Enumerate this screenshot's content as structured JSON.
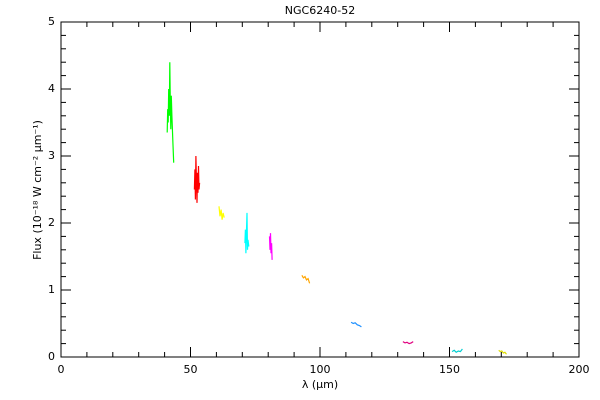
{
  "chart_data": {
    "type": "line",
    "title": "NGC6240-52",
    "x_label": "λ (μm)",
    "y_label": "Flux (10⁻¹⁸ W cm⁻² μm⁻¹)",
    "xlim": [
      0,
      200
    ],
    "ylim": [
      0,
      5
    ],
    "xticks": [
      0,
      50,
      100,
      150,
      200
    ],
    "yticks": [
      0,
      1,
      2,
      3,
      4,
      5
    ],
    "xminorticks": [
      10,
      20,
      30,
      40,
      60,
      70,
      80,
      90,
      110,
      120,
      130,
      140,
      160,
      170,
      180,
      190
    ],
    "yminorticks": [
      0.2,
      0.4,
      0.6,
      0.8,
      1.2,
      1.4,
      1.6,
      1.8,
      2.2,
      2.4,
      2.6,
      2.8,
      3.2,
      3.4,
      3.6,
      3.8,
      4.2,
      4.4,
      4.6,
      4.8
    ],
    "series": [
      {
        "color": "#00ff00",
        "x": [
          41,
          41.2,
          41.4,
          41.6,
          41.8,
          42,
          42.2,
          42.4,
          42.6,
          42.8,
          43,
          43.2,
          43.5
        ],
        "values": [
          3.35,
          3.7,
          3.5,
          4.0,
          3.6,
          4.4,
          3.8,
          3.4,
          3.9,
          3.6,
          3.4,
          3.2,
          2.9
        ]
      },
      {
        "color": "#ff0000",
        "x": [
          51.5,
          51.7,
          51.9,
          52.1,
          52.3,
          52.5,
          52.7,
          52.9,
          53.1,
          53.3,
          53.5
        ],
        "values": [
          2.5,
          2.8,
          2.35,
          3.0,
          2.6,
          2.3,
          2.75,
          2.45,
          2.85,
          2.5,
          2.6
        ]
      },
      {
        "color": "#ffff00",
        "x": [
          61,
          61.4,
          61.8,
          62.2,
          62.6,
          63
        ],
        "values": [
          2.25,
          2.1,
          2.2,
          2.05,
          2.15,
          2.08
        ]
      },
      {
        "color": "#00ffff",
        "x": [
          71,
          71.2,
          71.4,
          71.6,
          71.8,
          72,
          72.2,
          72.5
        ],
        "values": [
          1.7,
          1.9,
          1.55,
          1.85,
          2.15,
          1.6,
          1.75,
          1.65
        ]
      },
      {
        "color": "#ff00ff",
        "x": [
          80.5,
          80.7,
          80.9,
          81.1,
          81.3,
          81.5
        ],
        "values": [
          1.8,
          1.6,
          1.85,
          1.55,
          1.7,
          1.45
        ]
      },
      {
        "color": "#ffa500",
        "x": [
          93,
          93.6,
          94.2,
          94.8,
          95.4,
          96
        ],
        "values": [
          1.22,
          1.18,
          1.2,
          1.15,
          1.17,
          1.1
        ]
      },
      {
        "color": "#1e90ff",
        "x": [
          112,
          112.8,
          113.6,
          114.4,
          115.2,
          116
        ],
        "values": [
          0.52,
          0.5,
          0.51,
          0.48,
          0.47,
          0.45
        ]
      },
      {
        "color": "#e0007f",
        "x": [
          132,
          132.8,
          133.6,
          134.4,
          135.2,
          136
        ],
        "values": [
          0.23,
          0.21,
          0.22,
          0.2,
          0.21,
          0.23
        ]
      },
      {
        "color": "#00ced1",
        "x": [
          151,
          151.8,
          152.6,
          153.4,
          154.2,
          155
        ],
        "values": [
          0.08,
          0.1,
          0.07,
          0.09,
          0.08,
          0.12
        ]
      },
      {
        "color": "#dddd00",
        "x": [
          169,
          169.6,
          170.2,
          170.8,
          171.4,
          172
        ],
        "values": [
          0.1,
          0.08,
          0.09,
          0.06,
          0.07,
          0.04
        ]
      }
    ]
  }
}
